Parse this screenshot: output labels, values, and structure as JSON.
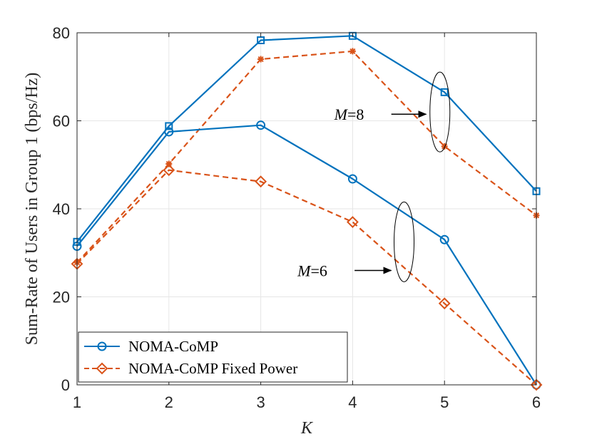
{
  "chart_data": {
    "type": "line",
    "xlabel": "K",
    "ylabel": "Sum-Rate of Users in Group 1 (bps/Hz)",
    "x": [
      1,
      2,
      3,
      4,
      5,
      6
    ],
    "xlim": [
      1,
      6
    ],
    "ylim": [
      0,
      80
    ],
    "xticks": [
      "1",
      "2",
      "3",
      "4",
      "5",
      "6"
    ],
    "yticks": [
      "0",
      "20",
      "40",
      "60",
      "80"
    ],
    "grid": true,
    "legend_position": "bottom-left",
    "colors": {
      "blue": "#0072BD",
      "orange": "#D95319"
    },
    "series": [
      {
        "name": "NOMA-CoMP",
        "group": "M=8",
        "color": "#0072BD",
        "style": "solid",
        "marker": "square",
        "values": [
          32.5,
          58.8,
          78.3,
          79.3,
          66.5,
          44.0
        ],
        "legend": false
      },
      {
        "name": "NOMA-CoMP Fixed Power",
        "group": "M=8",
        "color": "#D95319",
        "style": "dashed",
        "marker": "asterisk",
        "values": [
          27.8,
          50.2,
          74.0,
          75.8,
          54.2,
          38.5
        ],
        "legend": false
      },
      {
        "name": "NOMA-CoMP",
        "group": "M=6",
        "color": "#0072BD",
        "style": "solid",
        "marker": "circle",
        "values": [
          31.5,
          57.5,
          59.0,
          46.8,
          33.0,
          0.0
        ],
        "legend": true
      },
      {
        "name": "NOMA-CoMP Fixed Power",
        "group": "M=6",
        "color": "#D95319",
        "style": "dashed",
        "marker": "diamond",
        "values": [
          27.5,
          48.8,
          46.2,
          37.0,
          18.5,
          0.0
        ],
        "legend": true
      }
    ],
    "annotations": [
      {
        "label_var": "M",
        "label_val": "=8",
        "ellipse_x": 4.95,
        "ellipse_y": 62,
        "arrow_to": [
          4.8,
          61.5
        ],
        "text_at": [
          3.8,
          61.5
        ]
      },
      {
        "label_var": "M",
        "label_val": "=6",
        "ellipse_x": 4.56,
        "ellipse_y": 32.5,
        "arrow_to": [
          4.42,
          26
        ],
        "text_at": [
          3.4,
          26
        ]
      }
    ]
  }
}
